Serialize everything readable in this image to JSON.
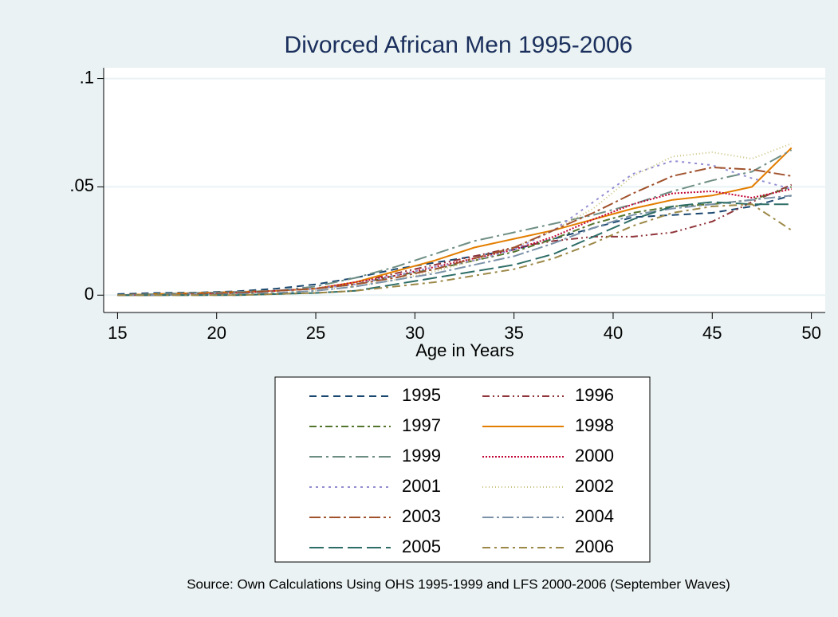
{
  "chart_data": {
    "type": "line",
    "title": "Divorced African Men 1995-2006",
    "x_label": "Age in Years",
    "note": "Source: Own Calculations Using OHS 1995-1999 and LFS 2000-2006 (September Waves)",
    "x": [
      15,
      17,
      19,
      21,
      23,
      25,
      27,
      29,
      31,
      33,
      35,
      37,
      39,
      41,
      43,
      45,
      47,
      49
    ],
    "xlim": [
      14.3,
      50.7
    ],
    "xticks": [
      15,
      20,
      25,
      30,
      35,
      40,
      45,
      50
    ],
    "ylim": [
      -0.008,
      0.105
    ],
    "yticks": [
      0,
      {
        "value": 0.05,
        "label": ".05"
      },
      {
        "value": 0.1,
        "label": ".1"
      }
    ],
    "grid": true,
    "series": [
      {
        "name": "1995",
        "color": "#1a476f",
        "values": [
          0.0005,
          0.001,
          0.0012,
          0.0018,
          0.003,
          0.005,
          0.008,
          0.012,
          0.015,
          0.018,
          0.021,
          0.026,
          0.031,
          0.036,
          0.037,
          0.038,
          0.041,
          0.046
        ]
      },
      {
        "name": "1996",
        "color": "#90353b",
        "values": [
          0,
          0.0005,
          0.001,
          0.0015,
          0.002,
          0.003,
          0.006,
          0.01,
          0.014,
          0.018,
          0.022,
          0.025,
          0.027,
          0.027,
          0.029,
          0.034,
          0.043,
          0.051
        ]
      },
      {
        "name": "1997",
        "color": "#55752f",
        "values": [
          0,
          0,
          0.0005,
          0.001,
          0.002,
          0.003,
          0.005,
          0.009,
          0.012,
          0.016,
          0.02,
          0.026,
          0.033,
          0.038,
          0.041,
          0.042,
          0.044,
          0.05
        ]
      },
      {
        "name": "1998",
        "color": "#e37e00",
        "values": [
          0,
          0.0005,
          0.001,
          0.0015,
          0.002,
          0.003,
          0.006,
          0.011,
          0.016,
          0.022,
          0.026,
          0.03,
          0.035,
          0.04,
          0.044,
          0.046,
          0.05,
          0.068
        ]
      },
      {
        "name": "1999",
        "color": "#6e8e84",
        "values": [
          0,
          0.0005,
          0.001,
          0.0015,
          0.002,
          0.004,
          0.008,
          0.013,
          0.019,
          0.025,
          0.029,
          0.033,
          0.037,
          0.042,
          0.048,
          0.053,
          0.057,
          0.067
        ]
      },
      {
        "name": "2000",
        "color": "#c10534",
        "values": [
          0,
          0,
          0.0005,
          0.001,
          0.002,
          0.003,
          0.006,
          0.009,
          0.013,
          0.017,
          0.021,
          0.027,
          0.035,
          0.042,
          0.047,
          0.048,
          0.045,
          0.049
        ]
      },
      {
        "name": "2001",
        "color": "#938dd2",
        "values": [
          0,
          0,
          0.0005,
          0.001,
          0.002,
          0.003,
          0.005,
          0.009,
          0.013,
          0.016,
          0.021,
          0.03,
          0.043,
          0.056,
          0.062,
          0.06,
          0.054,
          0.049
        ]
      },
      {
        "name": "2002",
        "color": "#cac27e",
        "values": [
          0,
          0,
          0,
          0.0005,
          0.001,
          0.002,
          0.004,
          0.007,
          0.011,
          0.016,
          0.022,
          0.03,
          0.04,
          0.055,
          0.064,
          0.066,
          0.063,
          0.07
        ]
      },
      {
        "name": "2003",
        "color": "#a0522d",
        "values": [
          0,
          0,
          0.0005,
          0.001,
          0.002,
          0.003,
          0.005,
          0.008,
          0.012,
          0.017,
          0.022,
          0.03,
          0.038,
          0.047,
          0.055,
          0.059,
          0.058,
          0.055
        ]
      },
      {
        "name": "2004",
        "color": "#7b92a8",
        "values": [
          0,
          0,
          0,
          0.0005,
          0.001,
          0.002,
          0.004,
          0.007,
          0.01,
          0.014,
          0.018,
          0.024,
          0.031,
          0.037,
          0.04,
          0.042,
          0.044,
          0.046
        ]
      },
      {
        "name": "2005",
        "color": "#2d6d66",
        "values": [
          0,
          0,
          0,
          0,
          0.0005,
          0.001,
          0.002,
          0.005,
          0.008,
          0.011,
          0.014,
          0.019,
          0.027,
          0.035,
          0.041,
          0.043,
          0.042,
          0.042
        ]
      },
      {
        "name": "2006",
        "color": "#9c8847",
        "values": [
          0,
          0,
          0,
          0,
          0.0005,
          0.001,
          0.002,
          0.004,
          0.006,
          0.009,
          0.012,
          0.017,
          0.024,
          0.032,
          0.038,
          0.041,
          0.042,
          0.03
        ]
      }
    ]
  }
}
